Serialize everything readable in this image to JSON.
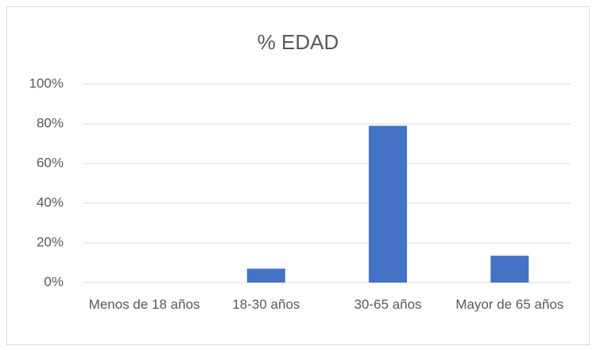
{
  "chart_data": {
    "type": "bar",
    "title": "% EDAD",
    "categories": [
      "Menos de 18 años",
      "18-30 años",
      "30-65 años",
      "Mayor de 65 años"
    ],
    "values": [
      0,
      7,
      79,
      13.5
    ],
    "color": "#4472c4",
    "ylim": [
      0,
      100
    ],
    "yticks": [
      {
        "value": 0,
        "label": "0%"
      },
      {
        "value": 20,
        "label": "20%"
      },
      {
        "value": 40,
        "label": "40%"
      },
      {
        "value": 60,
        "label": "60%"
      },
      {
        "value": 80,
        "label": "80%"
      },
      {
        "value": 100,
        "label": "100%"
      }
    ],
    "grid": true
  }
}
